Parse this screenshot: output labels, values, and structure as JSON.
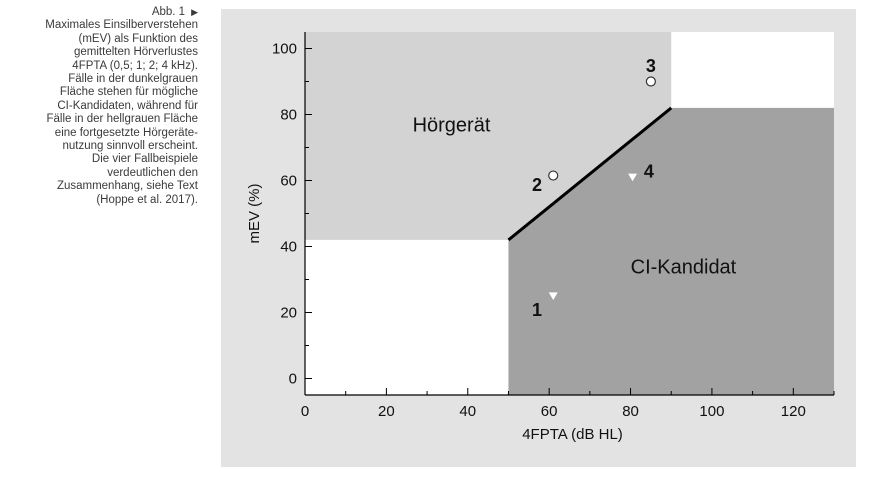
{
  "caption": {
    "figure_label": "Abb. 1",
    "lines": [
      "Maximales Einsilberverstehen",
      "(mEV) als Funktion des",
      "gemittelten Hörverlustes",
      "4FPTA (0,5; 1; 2; 4 kHz).",
      "Fälle in der dunkelgrauen",
      "Fläche stehen für mögliche",
      "CI-Kandidaten, während für",
      "Fälle in der hellgrauen Fläche",
      "eine fortgesetzte Hörgeräte-",
      "nutzung sinnvoll erscheint.",
      "Die vier Fallbeispiele",
      "verdeutlichen den",
      "Zusammenhang, siehe Text",
      "(Hoppe et al. 2017)."
    ]
  },
  "chart_data": {
    "type": "scatter",
    "title": "",
    "xlabel": "4FPTA (dB HL)",
    "ylabel": "mEV (%)",
    "xlim": [
      0,
      130
    ],
    "ylim": [
      -5,
      105
    ],
    "x_ticks": [
      0,
      20,
      40,
      60,
      80,
      100,
      120
    ],
    "y_ticks": [
      0,
      20,
      40,
      60,
      80,
      100
    ],
    "grid": false,
    "regions": [
      {
        "name": "Hörgerät",
        "color": "#d3d3d3",
        "polygon": [
          [
            0,
            105
          ],
          [
            90,
            105
          ],
          [
            90,
            82
          ],
          [
            50,
            42
          ],
          [
            0,
            42
          ]
        ]
      },
      {
        "name": "CI-Kandidat",
        "color": "#a2a2a2",
        "polygon": [
          [
            50,
            42
          ],
          [
            90,
            82
          ],
          [
            130,
            82
          ],
          [
            130,
            -5
          ],
          [
            50,
            -5
          ]
        ]
      }
    ],
    "boundary": [
      [
        50,
        42
      ],
      [
        90,
        82
      ]
    ],
    "region_labels": [
      {
        "text": "Hörgerät",
        "x": 36,
        "y": 77
      },
      {
        "text": "CI-Kandidat",
        "x": 93,
        "y": 34
      }
    ],
    "cases": [
      {
        "label": "1",
        "x": 61,
        "y": 25,
        "marker": "triangle-down",
        "label_x": 57,
        "label_y": 21
      },
      {
        "label": "2",
        "x": 61,
        "y": 61.5,
        "marker": "circle",
        "label_x": 57,
        "label_y": 59
      },
      {
        "label": "3",
        "x": 85,
        "y": 90,
        "marker": "circle",
        "label_x": 85,
        "label_y": 95
      },
      {
        "label": "4",
        "x": 80.5,
        "y": 61,
        "marker": "triangle-down",
        "label_x": 84.5,
        "label_y": 63
      }
    ]
  }
}
